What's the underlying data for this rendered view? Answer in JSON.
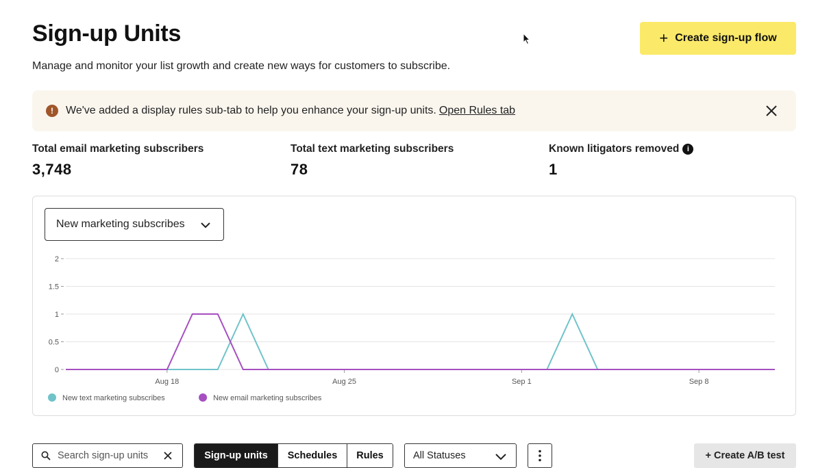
{
  "header": {
    "title": "Sign-up Units",
    "subtitle": "Manage and monitor your list growth and create new ways for customers to subscribe.",
    "create_button_label": "Create sign-up flow",
    "create_button_icon": "plus-icon",
    "create_button_color": "#fbe969"
  },
  "banner": {
    "message": "We've added a display rules sub-tab to help you enhance your sign-up units.",
    "link_label": "Open Rules tab",
    "icon": "info-icon",
    "icon_color": "#a0562b",
    "background": "#faf6ee"
  },
  "stats": [
    {
      "label": "Total email marketing subscribers",
      "value": "3,748"
    },
    {
      "label": "Total text marketing subscribers",
      "value": "78"
    },
    {
      "label": "Known litigators removed",
      "value": "1",
      "has_info_icon": true
    }
  ],
  "chart_selector": {
    "selected": "New marketing subscribes"
  },
  "chart_data": {
    "type": "line",
    "x_tick_labels": [
      "Aug 18",
      "Aug 25",
      "Sep 1",
      "Sep 8"
    ],
    "x_range": [
      "Aug 14",
      "Sep 11"
    ],
    "ylim": [
      0,
      2
    ],
    "y_ticks": [
      "0",
      "0.5",
      "1",
      "1.5",
      "2"
    ],
    "grid": true,
    "legend_position": "bottom-left",
    "series": [
      {
        "name": "New text marketing subscribes",
        "color": "#6fc3c9",
        "points": [
          [
            "Aug 14",
            0
          ],
          [
            "Aug 20",
            0
          ],
          [
            "Aug 21",
            1
          ],
          [
            "Aug 22",
            0
          ],
          [
            "Sep 2",
            0
          ],
          [
            "Sep 3",
            1
          ],
          [
            "Sep 4",
            0
          ],
          [
            "Sep 11",
            0
          ]
        ]
      },
      {
        "name": "New email marketing subscribes",
        "color": "#a64fc1",
        "points": [
          [
            "Aug 14",
            0
          ],
          [
            "Aug 18",
            0
          ],
          [
            "Aug 19",
            1
          ],
          [
            "Aug 20",
            1
          ],
          [
            "Aug 21",
            0
          ],
          [
            "Sep 11",
            0
          ]
        ]
      }
    ]
  },
  "toolbar": {
    "search_placeholder": "Search sign-up units",
    "tabs": [
      {
        "label": "Sign-up units",
        "active": true
      },
      {
        "label": "Schedules",
        "active": false
      },
      {
        "label": "Rules",
        "active": false
      }
    ],
    "status_filter": "All Statuses",
    "ab_button_label": "+ Create A/B test"
  }
}
